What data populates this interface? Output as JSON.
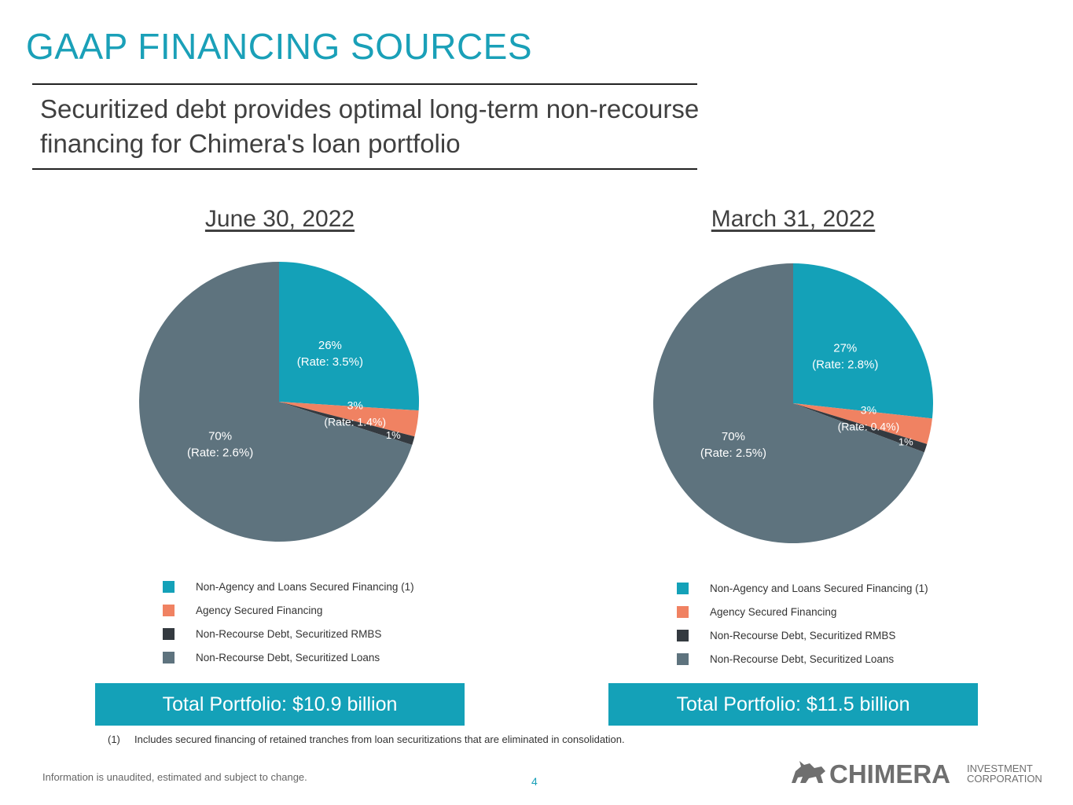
{
  "header": {
    "title": "GAAP FINANCING SOURCES",
    "subtitle_line1": "Securitized debt provides optimal long-term non-recourse",
    "subtitle_line2": "financing for Chimera's loan portfolio"
  },
  "colors": {
    "accent": "#1aa0b8",
    "non_agency": "#14a1b8",
    "agency": "#f08262",
    "rmbs": "#343a40",
    "loans": "#5e737e"
  },
  "chart_data": [
    {
      "type": "pie",
      "title": "June 30, 2022",
      "categories": [
        "Non-Agency and Loans Secured Financing (1)",
        "Agency Secured Financing",
        "Non-Recourse Debt, Securitized RMBS",
        "Non-Recourse Debt, Securitized Loans"
      ],
      "values": [
        26,
        3,
        1,
        70
      ],
      "value_labels": [
        "26%",
        "3%",
        "1%",
        "70%"
      ],
      "rate_labels": [
        "(Rate: 3.5%)",
        "(Rate: 1.4%)",
        "",
        "(Rate: 2.6%)"
      ],
      "legend_placement": "bottom",
      "total_label": "Total Portfolio: $10.9 billion"
    },
    {
      "type": "pie",
      "title": "March 31, 2022",
      "categories": [
        "Non-Agency and Loans Secured Financing (1)",
        "Agency Secured Financing",
        "Non-Recourse Debt, Securitized RMBS",
        "Non-Recourse Debt, Securitized Loans"
      ],
      "values": [
        27,
        3,
        1,
        70
      ],
      "value_labels": [
        "27%",
        "3%",
        "1%",
        "70%"
      ],
      "rate_labels": [
        "(Rate: 2.8%)",
        "(Rate: 0.4%)",
        "",
        "(Rate: 2.5%)"
      ],
      "legend_placement": "bottom",
      "total_label": "Total Portfolio: $11.5 billion"
    }
  ],
  "footnote": {
    "marker": "(1)",
    "text": "Includes secured financing of retained tranches from loan securitizations that are eliminated in consolidation."
  },
  "disclaimer": "Information is unaudited, estimated and subject to change.",
  "page_number": "4",
  "logo": {
    "name": "CHIMERA",
    "tagline_1": "INVESTMENT",
    "tagline_2": "CORPORATION",
    "icon": "chimera-creature-icon"
  }
}
